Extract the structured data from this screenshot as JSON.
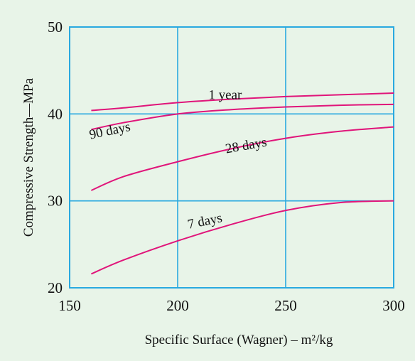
{
  "chart_data": {
    "type": "line",
    "title": "",
    "xlabel": "Specific Surface (Wagner) – m²/kg",
    "ylabel": "Compressive Strength—MPa",
    "xlim": [
      150,
      300
    ],
    "ylim": [
      20,
      50
    ],
    "x_ticks": [
      150,
      200,
      250,
      300
    ],
    "y_ticks": [
      20,
      30,
      40,
      50
    ],
    "grid": true,
    "legend": "inline labels",
    "colors": {
      "background": "#e8f4e8",
      "grid": "#29a9e0",
      "axes": "#29a9e0",
      "series": "#e0157a"
    },
    "series": [
      {
        "name": "1 year",
        "x": [
          160,
          175,
          200,
          225,
          250,
          275,
          300
        ],
        "y": [
          40.4,
          40.7,
          41.3,
          41.7,
          42.0,
          42.2,
          42.4
        ]
      },
      {
        "name": "90 days",
        "x": [
          160,
          175,
          200,
          225,
          250,
          275,
          300
        ],
        "y": [
          38.2,
          39.0,
          40.0,
          40.5,
          40.8,
          41.0,
          41.1
        ]
      },
      {
        "name": "28 days",
        "x": [
          160,
          175,
          200,
          225,
          250,
          275,
          300
        ],
        "y": [
          31.2,
          32.8,
          34.5,
          36.0,
          37.2,
          38.0,
          38.5
        ]
      },
      {
        "name": "7 days",
        "x": [
          160,
          175,
          200,
          225,
          250,
          275,
          300
        ],
        "y": [
          21.6,
          23.2,
          25.4,
          27.3,
          28.9,
          29.8,
          30.0
        ]
      }
    ]
  }
}
